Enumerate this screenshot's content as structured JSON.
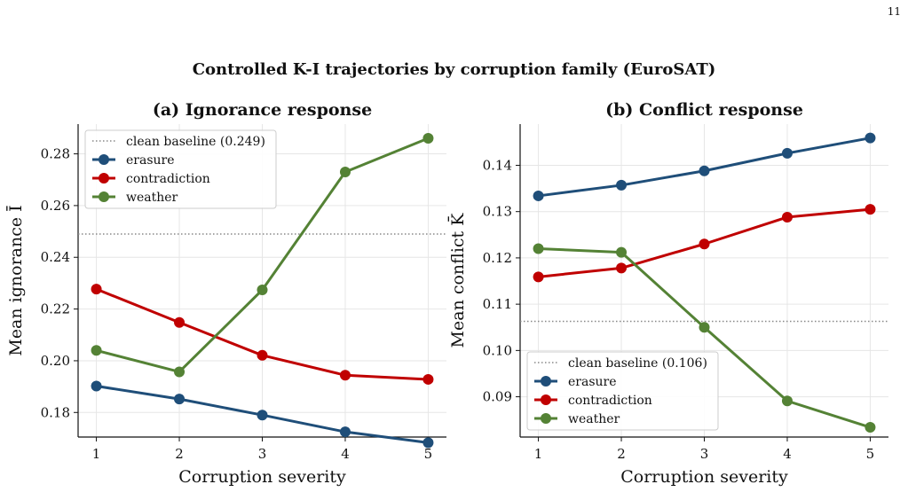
{
  "page_number": "11",
  "suptitle": "Controlled K-I trajectories by corruption family (EuroSAT)",
  "colors": {
    "erasure": "#1f4e79",
    "contradiction": "#c00000",
    "weather": "#548235",
    "baseline": "#888888",
    "grid": "#e6e6e6"
  },
  "chart_data": [
    {
      "type": "line",
      "title": "(a) Ignorance response",
      "xlabel": "Corruption severity",
      "ylabel": "Mean ignorance Ī",
      "x": [
        1,
        2,
        3,
        4,
        5
      ],
      "xticks": [
        "1",
        "2",
        "3",
        "4",
        "5"
      ],
      "ylim": [
        0.1705,
        0.2915
      ],
      "yticks": [
        0.18,
        0.2,
        0.22,
        0.24,
        0.26,
        0.28
      ],
      "ytick_labels": [
        "0.18",
        "0.20",
        "0.22",
        "0.24",
        "0.26",
        "0.28"
      ],
      "grid": true,
      "legend_position": "top-left",
      "baseline": {
        "label": "clean baseline (0.249)",
        "value": 0.249
      },
      "series": [
        {
          "name": "erasure",
          "color_key": "erasure",
          "values": [
            0.1902,
            0.1852,
            0.179,
            0.1725,
            0.1683
          ]
        },
        {
          "name": "contradiction",
          "color_key": "contradiction",
          "values": [
            0.2277,
            0.2148,
            0.2021,
            0.1944,
            0.1928
          ]
        },
        {
          "name": "weather",
          "color_key": "weather",
          "values": [
            0.204,
            0.1957,
            0.2274,
            0.273,
            0.286
          ]
        }
      ]
    },
    {
      "type": "line",
      "title": "(b) Conflict response",
      "xlabel": "Corruption severity",
      "ylabel": "Mean conflict K̄",
      "x": [
        1,
        2,
        3,
        4,
        5
      ],
      "xticks": [
        "1",
        "2",
        "3",
        "4",
        "5"
      ],
      "ylim": [
        0.0813,
        0.1489
      ],
      "yticks": [
        0.09,
        0.1,
        0.11,
        0.12,
        0.13,
        0.14
      ],
      "ytick_labels": [
        "0.09",
        "0.10",
        "0.11",
        "0.12",
        "0.13",
        "0.14"
      ],
      "grid": true,
      "legend_position": "bottom-left",
      "baseline": {
        "label": "clean baseline (0.106)",
        "value": 0.1063
      },
      "series": [
        {
          "name": "erasure",
          "color_key": "erasure",
          "values": [
            0.1334,
            0.1357,
            0.1388,
            0.1426,
            0.1459
          ]
        },
        {
          "name": "contradiction",
          "color_key": "contradiction",
          "values": [
            0.1159,
            0.1178,
            0.123,
            0.1288,
            0.1305
          ]
        },
        {
          "name": "weather",
          "color_key": "weather",
          "values": [
            0.122,
            0.1212,
            0.105,
            0.0891,
            0.0834
          ]
        }
      ]
    }
  ]
}
